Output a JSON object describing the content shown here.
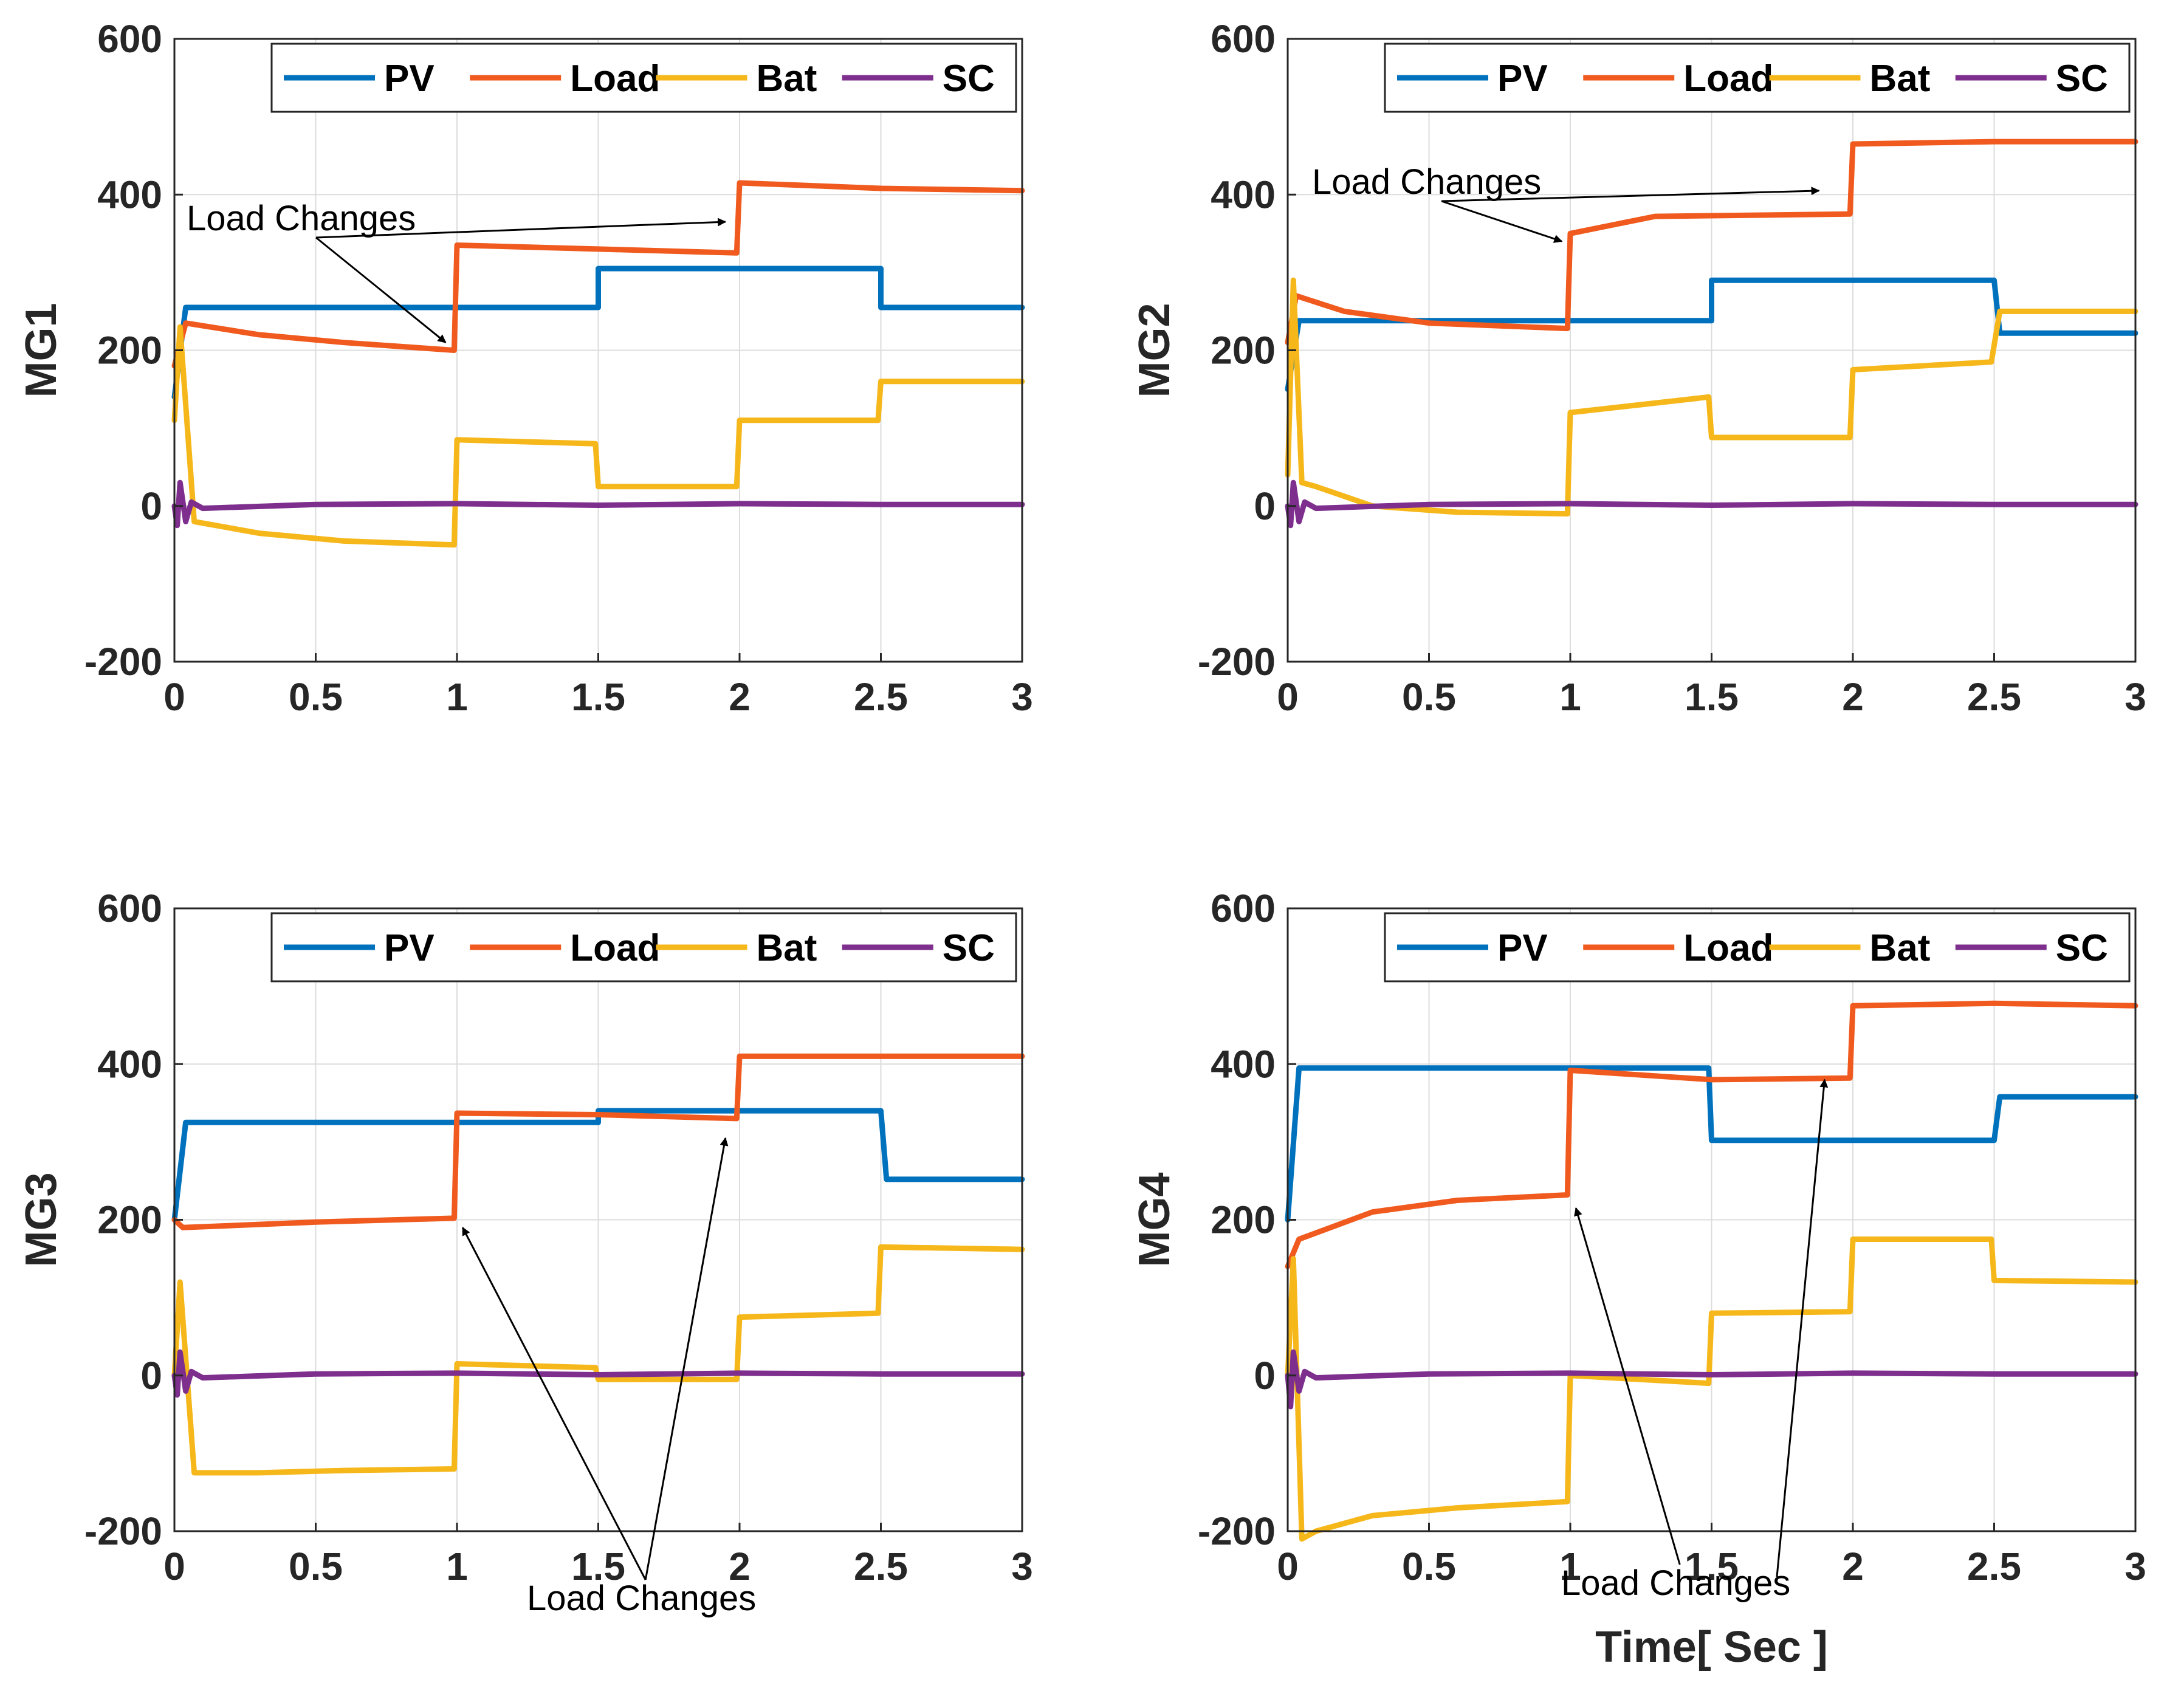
{
  "colors": {
    "PV": "#0072BD",
    "Load": "#F05A1E",
    "Bat": "#F5B71A",
    "SC": "#7E2F8E"
  },
  "chart_data": [
    {
      "type": "line",
      "id": "mg1",
      "ylabel": "MG1",
      "xlabel": "",
      "xlim": [
        0,
        3
      ],
      "ylim": [
        -200,
        600
      ],
      "xticks": [
        "0",
        "0.5",
        "1",
        "1.5",
        "2",
        "2.5",
        "3"
      ],
      "yticks": [
        "-200",
        "0",
        "200",
        "400",
        "600"
      ],
      "grid": true,
      "legend": [
        "PV",
        "Load",
        "Bat",
        "SC"
      ],
      "legend_location": "top",
      "annotation": {
        "text": "Load Changes",
        "targets": [
          [
            0.96,
            210
          ],
          [
            1.95,
            365
          ]
        ]
      },
      "series": [
        {
          "name": "PV",
          "x": [
            0,
            0.04,
            1.5,
            1.5,
            2.5,
            2.5,
            3
          ],
          "values": [
            140,
            255,
            255,
            305,
            305,
            255,
            255
          ]
        },
        {
          "name": "Load",
          "x": [
            0,
            0.04,
            0.3,
            0.6,
            0.99,
            1,
            1.5,
            1.99,
            2,
            2.5,
            3
          ],
          "values": [
            180,
            235,
            220,
            210,
            200,
            335,
            330,
            325,
            415,
            408,
            405
          ]
        },
        {
          "name": "Bat",
          "x": [
            0,
            0.02,
            0.07,
            0.3,
            0.6,
            0.99,
            1,
            1.49,
            1.5,
            1.99,
            2,
            2.49,
            2.5,
            3
          ],
          "values": [
            110,
            230,
            -20,
            -35,
            -45,
            -50,
            85,
            80,
            25,
            25,
            110,
            110,
            160,
            160
          ]
        },
        {
          "name": "SC",
          "x": [
            0,
            0.01,
            0.02,
            0.04,
            0.06,
            0.1,
            0.5,
            1,
            1.5,
            2,
            2.5,
            3
          ],
          "values": [
            0,
            -25,
            30,
            -20,
            5,
            -3,
            2,
            3,
            1,
            3,
            2,
            2
          ]
        }
      ]
    },
    {
      "type": "line",
      "id": "mg2",
      "ylabel": "MG2",
      "xlabel": "",
      "xlim": [
        0,
        3
      ],
      "ylim": [
        -200,
        600
      ],
      "xticks": [
        "0",
        "0.5",
        "1",
        "1.5",
        "2",
        "2.5",
        "3"
      ],
      "yticks": [
        "-200",
        "0",
        "200",
        "400",
        "600"
      ],
      "grid": true,
      "legend": [
        "PV",
        "Load",
        "Bat",
        "SC"
      ],
      "legend_location": "top",
      "annotation": {
        "text": "Load Changes",
        "targets": [
          [
            0.97,
            340
          ],
          [
            1.88,
            405
          ]
        ]
      },
      "series": [
        {
          "name": "PV",
          "x": [
            0,
            0.04,
            1.5,
            1.5,
            2.5,
            2.52,
            3
          ],
          "values": [
            150,
            238,
            238,
            290,
            290,
            222,
            222
          ]
        },
        {
          "name": "Load",
          "x": [
            0,
            0.03,
            0.2,
            0.5,
            0.99,
            1,
            1.3,
            1.99,
            2,
            2.5,
            3
          ],
          "values": [
            210,
            270,
            250,
            235,
            228,
            350,
            372,
            375,
            465,
            468,
            468
          ]
        },
        {
          "name": "Bat",
          "x": [
            0,
            0.02,
            0.05,
            0.1,
            0.3,
            0.6,
            0.99,
            1,
            1.49,
            1.5,
            1.99,
            2,
            2.49,
            2.52,
            3
          ],
          "values": [
            40,
            290,
            30,
            25,
            0,
            -8,
            -10,
            120,
            140,
            88,
            88,
            175,
            185,
            250,
            250
          ]
        },
        {
          "name": "SC",
          "x": [
            0,
            0.01,
            0.02,
            0.04,
            0.06,
            0.1,
            0.5,
            1,
            1.5,
            2,
            2.5,
            3
          ],
          "values": [
            0,
            -25,
            30,
            -20,
            5,
            -3,
            2,
            3,
            1,
            3,
            2,
            2
          ]
        }
      ]
    },
    {
      "type": "line",
      "id": "mg3",
      "ylabel": "MG3",
      "xlabel": "",
      "xlim": [
        0,
        3
      ],
      "ylim": [
        -200,
        600
      ],
      "xticks": [
        "0",
        "0.5",
        "1",
        "1.5",
        "2",
        "2.5",
        "3"
      ],
      "yticks": [
        "-200",
        "0",
        "200",
        "400",
        "600"
      ],
      "grid": true,
      "legend": [
        "PV",
        "Load",
        "Bat",
        "SC"
      ],
      "legend_location": "top",
      "annotation": {
        "text": "Load Changes",
        "targets": [
          [
            1.02,
            190
          ],
          [
            1.95,
            305
          ]
        ]
      },
      "series": [
        {
          "name": "PV",
          "x": [
            0,
            0.04,
            1.5,
            1.5,
            2.5,
            2.52,
            3
          ],
          "values": [
            200,
            325,
            325,
            340,
            340,
            252,
            252
          ]
        },
        {
          "name": "Load",
          "x": [
            0,
            0.03,
            0.5,
            0.99,
            1,
            1.5,
            1.99,
            2,
            2.5,
            3
          ],
          "values": [
            200,
            190,
            197,
            202,
            337,
            335,
            330,
            410,
            410,
            410
          ]
        },
        {
          "name": "Bat",
          "x": [
            0,
            0.02,
            0.07,
            0.3,
            0.6,
            0.99,
            1,
            1.49,
            1.5,
            1.99,
            2,
            2.49,
            2.5,
            3
          ],
          "values": [
            0,
            120,
            -125,
            -125,
            -122,
            -120,
            15,
            10,
            -5,
            -5,
            75,
            80,
            165,
            162
          ]
        },
        {
          "name": "SC",
          "x": [
            0,
            0.01,
            0.02,
            0.04,
            0.06,
            0.1,
            0.5,
            1,
            1.5,
            2,
            2.5,
            3
          ],
          "values": [
            0,
            -25,
            30,
            -20,
            5,
            -3,
            2,
            3,
            1,
            3,
            2,
            2
          ]
        }
      ]
    },
    {
      "type": "line",
      "id": "mg4",
      "ylabel": "MG4",
      "xlabel": "Time[ Sec ]",
      "xlim": [
        0,
        3
      ],
      "ylim": [
        -200,
        600
      ],
      "xticks": [
        "0",
        "0.5",
        "1",
        "1.5",
        "2",
        "2.5",
        "3"
      ],
      "yticks": [
        "-200",
        "0",
        "200",
        "400",
        "600"
      ],
      "grid": true,
      "legend": [
        "PV",
        "Load",
        "Bat",
        "SC"
      ],
      "legend_location": "top",
      "annotation": {
        "text": "Load Changes",
        "targets": [
          [
            1.02,
            215
          ],
          [
            1.9,
            380
          ]
        ]
      },
      "series": [
        {
          "name": "PV",
          "x": [
            0,
            0.04,
            1.49,
            1.5,
            2.5,
            2.52,
            3
          ],
          "values": [
            200,
            395,
            395,
            302,
            302,
            358,
            358
          ]
        },
        {
          "name": "Load",
          "x": [
            0,
            0.04,
            0.3,
            0.6,
            0.99,
            1,
            1.5,
            1.99,
            2,
            2.5,
            3
          ],
          "values": [
            140,
            175,
            210,
            225,
            232,
            392,
            380,
            382,
            475,
            478,
            475
          ]
        },
        {
          "name": "Bat",
          "x": [
            0,
            0.02,
            0.05,
            0.1,
            0.3,
            0.6,
            0.99,
            1,
            1.49,
            1.5,
            1.99,
            2,
            2.49,
            2.5,
            3
          ],
          "values": [
            0,
            150,
            -210,
            -200,
            -180,
            -170,
            -162,
            0,
            -10,
            80,
            82,
            175,
            175,
            122,
            120
          ]
        },
        {
          "name": "SC",
          "x": [
            0,
            0.01,
            0.02,
            0.04,
            0.06,
            0.1,
            0.5,
            1,
            1.5,
            2,
            2.5,
            3
          ],
          "values": [
            0,
            -40,
            30,
            -20,
            5,
            -3,
            2,
            3,
            1,
            3,
            2,
            2
          ]
        }
      ]
    }
  ]
}
